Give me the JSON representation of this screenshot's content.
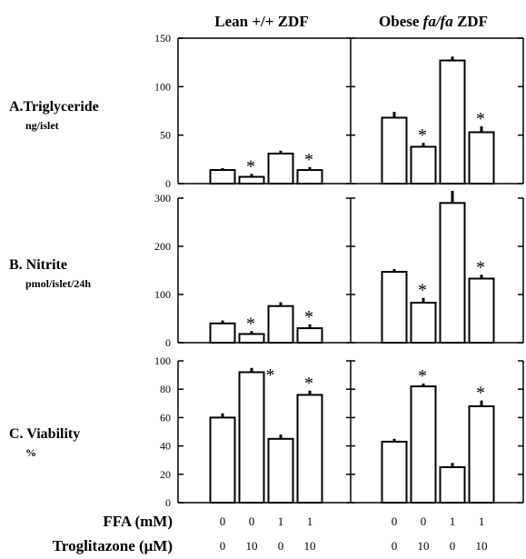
{
  "chart_data": {
    "type": "bar",
    "group_titles": [
      "Lean +/+ ZDF",
      "Obese fa/fa ZDF"
    ],
    "condition_rows": [
      {
        "label": "FFA (mM)",
        "values": [
          "0",
          "0",
          "1",
          "1"
        ]
      },
      {
        "label": "Troglitazone (μM)",
        "values": [
          "0",
          "10",
          "0",
          "10"
        ]
      }
    ],
    "panels": [
      {
        "label": "A.Triglyceride",
        "unit": "ng/islet",
        "ylim": [
          0,
          150
        ],
        "yticks": [
          0,
          50,
          100,
          150
        ],
        "groups": [
          {
            "values": [
              14,
              7,
              31,
              14
            ],
            "errors": [
              2,
              3,
              3,
              3
            ],
            "significant": [
              false,
              true,
              false,
              true
            ]
          },
          {
            "values": [
              68,
              38,
              127,
              53
            ],
            "errors": [
              6,
              4,
              4,
              6
            ],
            "significant": [
              false,
              true,
              false,
              true
            ]
          }
        ]
      },
      {
        "label": "B. Nitrite",
        "unit": "pmol/islet/24h",
        "ylim": [
          0,
          300
        ],
        "yticks": [
          0,
          100,
          200,
          300
        ],
        "groups": [
          {
            "values": [
              40,
              18,
              76,
              30
            ],
            "errors": [
              6,
              6,
              8,
              8
            ],
            "significant": [
              false,
              true,
              false,
              true
            ]
          },
          {
            "values": [
              147,
              83,
              290,
              133
            ],
            "errors": [
              6,
              10,
              25,
              8
            ],
            "significant": [
              false,
              true,
              false,
              true
            ]
          }
        ]
      },
      {
        "label": "C. Viability",
        "unit": "%",
        "ylim": [
          0,
          100
        ],
        "yticks": [
          0,
          20,
          40,
          60,
          80,
          100
        ],
        "groups": [
          {
            "values": [
              60,
              92,
              45,
              76
            ],
            "errors": [
              3,
              3,
              3,
              3
            ],
            "significant": [
              false,
              true,
              false,
              true
            ]
          },
          {
            "values": [
              43,
              82,
              25,
              68
            ],
            "errors": [
              2,
              2,
              3,
              4
            ],
            "significant": [
              false,
              true,
              false,
              true
            ]
          }
        ]
      }
    ]
  }
}
